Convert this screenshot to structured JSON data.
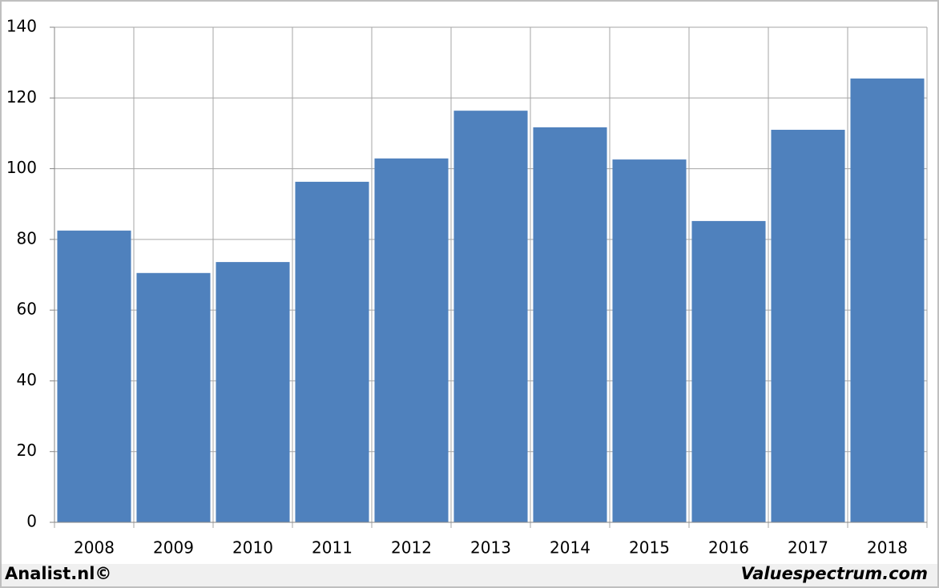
{
  "chart_data": {
    "type": "bar",
    "categories": [
      "2008",
      "2009",
      "2010",
      "2011",
      "2012",
      "2013",
      "2014",
      "2015",
      "2016",
      "2017",
      "2018"
    ],
    "values": [
      82.5,
      70.5,
      73.6,
      96.3,
      102.9,
      116.4,
      111.7,
      102.6,
      85.2,
      111.0,
      125.5
    ],
    "color": "#4f81bd",
    "ylim": [
      0,
      140
    ],
    "yticks": [
      0,
      20,
      40,
      60,
      80,
      100,
      120,
      140
    ],
    "grid": true
  },
  "footer": {
    "left": "Analist.nl©",
    "right": "Valuespectrum.com"
  }
}
